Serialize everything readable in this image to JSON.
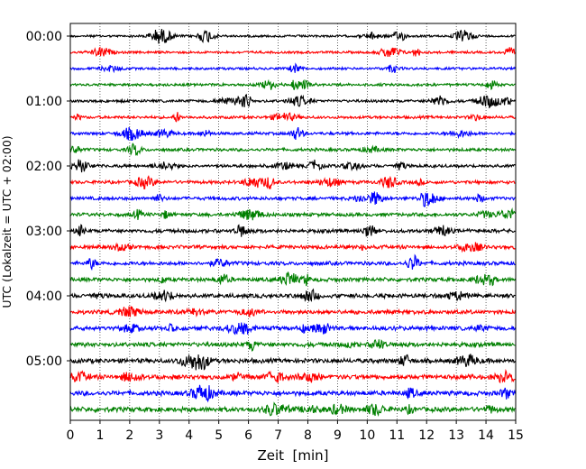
{
  "chart_data": {
    "type": "line",
    "title": "",
    "xlabel": "Zeit  [min]",
    "ylabel": "UTC (Lokalzeit = UTC + 02:00)",
    "xlim": [
      0,
      15
    ],
    "x_ticks": [
      "0",
      "1",
      "2",
      "3",
      "4",
      "5",
      "6",
      "7",
      "8",
      "9",
      "10",
      "11",
      "12",
      "13",
      "14",
      "15"
    ],
    "y_tick_labels": [
      "00:00",
      "01:00",
      "02:00",
      "03:00",
      "04:00",
      "05:00"
    ],
    "grid": "vertical dotted",
    "legend": "none",
    "trace_interval_minutes": 15,
    "trace_start_times": [
      "00:00",
      "00:15",
      "00:30",
      "00:45",
      "01:00",
      "01:15",
      "01:30",
      "01:45",
      "02:00",
      "02:15",
      "02:30",
      "02:45",
      "03:00",
      "03:15",
      "03:30",
      "03:45",
      "04:00",
      "04:15",
      "04:30",
      "04:45",
      "05:00",
      "05:15",
      "05:30",
      "05:45"
    ],
    "series_colors": [
      "#000000",
      "#ff0000",
      "#0000ff",
      "#008000"
    ]
  }
}
